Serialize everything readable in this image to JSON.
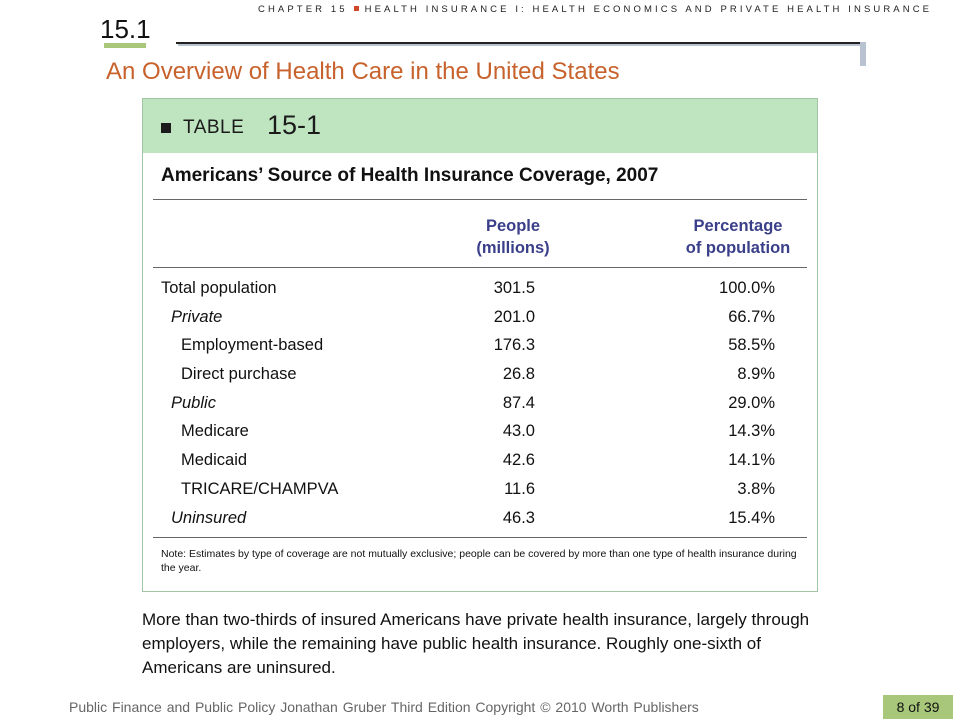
{
  "header": {
    "chapter_left": "CHAPTER 15",
    "chapter_right": "HEALTH INSURANCE I: HEALTH ECONOMICS AND PRIVATE HEALTH INSURANCE",
    "section_number": "15.1",
    "section_title": "An Overview of Health Care in the United States"
  },
  "table": {
    "label": "TABLE",
    "number": "15-1",
    "title": "Americans’ Source of Health Insurance Coverage, 2007",
    "columns": {
      "people_line1": "People",
      "people_line2": "(millions)",
      "pct_line1": "Percentage",
      "pct_line2": "of population"
    },
    "rows": [
      {
        "label": "Total population",
        "people": "301.5",
        "pct": "100.0%",
        "level": 0
      },
      {
        "label": "Private",
        "people": "201.0",
        "pct": "66.7%",
        "level": 1
      },
      {
        "label": "Employment-based",
        "people": "176.3",
        "pct": "58.5%",
        "level": 2
      },
      {
        "label": "Direct purchase",
        "people": "26.8",
        "pct": "8.9%",
        "level": 2
      },
      {
        "label": "Public",
        "people": "87.4",
        "pct": "29.0%",
        "level": 1
      },
      {
        "label": "Medicare",
        "people": "43.0",
        "pct": "14.3%",
        "level": 2
      },
      {
        "label": "Medicaid",
        "people": "42.6",
        "pct": "14.1%",
        "level": 2
      },
      {
        "label": "TRICARE/CHAMPVA",
        "people": "11.6",
        "pct": "3.8%",
        "level": 2
      },
      {
        "label": "Uninsured",
        "people": "46.3",
        "pct": "15.4%",
        "level": 1
      }
    ],
    "note": "Note: Estimates by type of coverage are not mutually exclusive; people can be covered by more than one type of health insurance during the year."
  },
  "caption": "More than two-thirds of insured Americans have private health insurance, largely through employers, while the remaining have public health insurance. Roughly one-sixth of Americans are uninsured.",
  "footer": {
    "text": "Public Finance and Public Policy   Jonathan Gruber   Third Edition   Copyright © 2010  Worth Publishers",
    "page": "8 of 39"
  },
  "colors": {
    "accent_green": "#a8c77a",
    "table_header_bg": "#bfe4c0",
    "subtitle_orange": "#c8622c",
    "column_head_blue": "#3a3f8a"
  }
}
